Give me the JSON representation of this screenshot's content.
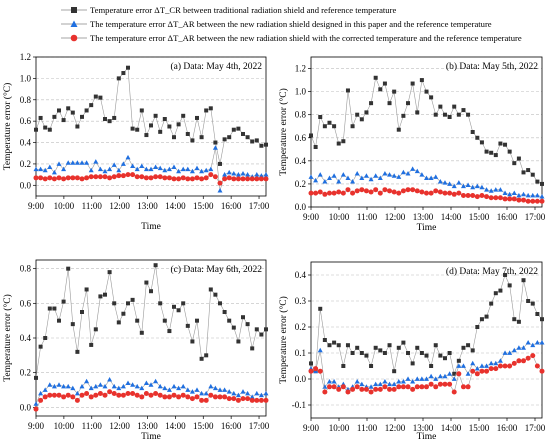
{
  "legend": [
    {
      "text": "Temperature error ΔT_CR between traditional radiation shield and reference temperature",
      "color": "#333333",
      "marker": "square"
    },
    {
      "text": "The temperature error ΔT_AR between the new radiation shield designed in this paper and the reference temperature",
      "color": "#1f6fe0",
      "marker": "triangle"
    },
    {
      "text": "The temperature error ΔT_AR between the new radiation shield with the corrected temperature and the reference temperature",
      "color": "#e8322d",
      "marker": "circle"
    }
  ],
  "chart_data": [
    {
      "type": "line",
      "annotation": "(a) Data: May 4th, 2022",
      "xlabel": "Time",
      "ylabel": "Temperature error (°C)",
      "xticks": [
        "9:00",
        "10:00",
        "11:00",
        "12:00",
        "13:00",
        "14:00",
        "15:00",
        "16:00",
        "17:00"
      ],
      "x_range_hours": [
        9,
        17.25
      ],
      "ylim": [
        -0.1,
        1.2
      ],
      "yticks": [
        "0.0",
        "0.2",
        "0.4",
        "0.6",
        "0.8",
        "1.0",
        "1.2"
      ],
      "grid": "horizontal dashed",
      "series": [
        {
          "name": "ΔT_CR",
          "values": [
            0.52,
            0.63,
            0.54,
            0.52,
            0.64,
            0.7,
            0.61,
            0.72,
            0.68,
            0.55,
            0.64,
            0.7,
            0.75,
            0.83,
            0.82,
            0.62,
            0.6,
            0.63,
            1.0,
            1.05,
            1.1,
            0.53,
            0.52,
            0.7,
            0.47,
            0.56,
            0.65,
            0.5,
            0.62,
            0.55,
            0.45,
            0.57,
            0.65,
            0.48,
            0.42,
            0.63,
            0.45,
            0.7,
            0.72,
            0.4,
            0.2,
            0.43,
            0.45,
            0.52,
            0.53,
            0.48,
            0.45,
            0.41,
            0.42,
            0.37,
            0.38
          ]
        },
        {
          "name": "ΔT_AR (new shield)",
          "values": [
            0.15,
            0.15,
            0.14,
            0.17,
            0.12,
            0.2,
            0.15,
            0.21,
            0.21,
            0.21,
            0.21,
            0.21,
            0.14,
            0.22,
            0.15,
            0.13,
            0.15,
            0.19,
            0.14,
            0.2,
            0.26,
            0.18,
            0.15,
            0.18,
            0.15,
            0.15,
            0.17,
            0.16,
            0.14,
            0.15,
            0.17,
            0.13,
            0.15,
            0.15,
            0.13,
            0.16,
            0.13,
            0.14,
            0.15,
            0.35,
            -0.05,
            0.1,
            0.12,
            0.11,
            0.1,
            0.11,
            0.1,
            0.08,
            0.1,
            0.09,
            0.1
          ]
        },
        {
          "name": "ΔT_AR (corrected)",
          "values": [
            0.07,
            0.07,
            0.06,
            0.07,
            0.06,
            0.07,
            0.06,
            0.07,
            0.07,
            0.07,
            0.06,
            0.07,
            0.08,
            0.08,
            0.08,
            0.08,
            0.07,
            0.08,
            0.09,
            0.09,
            0.1,
            0.1,
            0.08,
            0.08,
            0.07,
            0.07,
            0.08,
            0.08,
            0.07,
            0.07,
            0.06,
            0.06,
            0.07,
            0.06,
            0.06,
            0.07,
            0.06,
            0.07,
            0.1,
            0.08,
            0.02,
            0.06,
            0.07,
            0.06,
            0.06,
            0.06,
            0.06,
            0.06,
            0.06,
            0.06,
            0.06
          ]
        }
      ]
    },
    {
      "type": "line",
      "annotation": "(b) Data: May 5th, 2022",
      "xlabel": "Time",
      "ylabel": "Temperature error (°C)",
      "xticks": [
        "9:00",
        "10:00",
        "11:00",
        "12:00",
        "13:00",
        "14:00",
        "15:00",
        "16:00",
        "17:00"
      ],
      "x_range_hours": [
        9,
        17.25
      ],
      "ylim": [
        0,
        1.3
      ],
      "yticks": [
        "0.0",
        "0.2",
        "0.4",
        "0.6",
        "0.8",
        "1.0",
        "1.2"
      ],
      "grid": "horizontal dashed",
      "series": [
        {
          "name": "ΔT_CR",
          "values": [
            0.62,
            0.52,
            0.78,
            0.7,
            0.73,
            0.7,
            0.55,
            0.57,
            1.01,
            0.7,
            0.8,
            0.76,
            0.82,
            0.9,
            1.12,
            1.02,
            1.07,
            0.9,
            1.0,
            0.67,
            0.79,
            0.9,
            1.07,
            0.82,
            1.1,
            1.0,
            0.95,
            0.8,
            0.87,
            0.8,
            0.78,
            0.87,
            0.8,
            0.84,
            0.8,
            0.65,
            0.6,
            0.56,
            0.48,
            0.47,
            0.45,
            0.55,
            0.54,
            0.48,
            0.38,
            0.42,
            0.3,
            0.32,
            0.28,
            0.22,
            0.2
          ]
        },
        {
          "name": "ΔT_AR (new shield)",
          "values": [
            0.26,
            0.23,
            0.28,
            0.22,
            0.25,
            0.27,
            0.22,
            0.28,
            0.25,
            0.22,
            0.29,
            0.25,
            0.27,
            0.24,
            0.27,
            0.25,
            0.29,
            0.28,
            0.27,
            0.26,
            0.3,
            0.29,
            0.33,
            0.31,
            0.28,
            0.25,
            0.25,
            0.26,
            0.22,
            0.21,
            0.2,
            0.18,
            0.21,
            0.18,
            0.19,
            0.17,
            0.18,
            0.17,
            0.15,
            0.14,
            0.15,
            0.15,
            0.12,
            0.11,
            0.12,
            0.1,
            0.11,
            0.1,
            0.1,
            0.1,
            0.09
          ]
        },
        {
          "name": "ΔT_AR (corrected)",
          "values": [
            0.12,
            0.12,
            0.13,
            0.11,
            0.12,
            0.12,
            0.13,
            0.12,
            0.15,
            0.12,
            0.14,
            0.15,
            0.14,
            0.13,
            0.15,
            0.12,
            0.15,
            0.14,
            0.13,
            0.12,
            0.14,
            0.15,
            0.15,
            0.14,
            0.13,
            0.12,
            0.12,
            0.14,
            0.13,
            0.12,
            0.12,
            0.11,
            0.12,
            0.1,
            0.1,
            0.1,
            0.09,
            0.1,
            0.09,
            0.08,
            0.08,
            0.08,
            0.07,
            0.07,
            0.07,
            0.06,
            0.06,
            0.05,
            0.05,
            0.05,
            0.05
          ]
        }
      ]
    },
    {
      "type": "line",
      "annotation": "(c) Data: May 6th, 2022",
      "xlabel": "Time",
      "ylabel": "Temperature error (°C)",
      "xticks": [
        "9:00",
        "10:00",
        "11:00",
        "12:00",
        "13:00",
        "14:00",
        "15:00",
        "16:00",
        "17:00"
      ],
      "x_range_hours": [
        9,
        17.25
      ],
      "ylim": [
        -0.05,
        0.85
      ],
      "yticks": [
        "0.0",
        "0.2",
        "0.4",
        "0.6",
        "0.8"
      ],
      "grid": "horizontal dashed",
      "series": [
        {
          "name": "ΔT_CR",
          "values": [
            0.17,
            0.35,
            0.4,
            0.57,
            0.57,
            0.5,
            0.61,
            0.8,
            0.48,
            0.32,
            0.55,
            0.68,
            0.36,
            0.45,
            0.64,
            0.65,
            0.78,
            0.6,
            0.49,
            0.54,
            0.6,
            0.62,
            0.5,
            0.43,
            0.72,
            0.67,
            0.82,
            0.6,
            0.5,
            0.44,
            0.58,
            0.56,
            0.6,
            0.47,
            0.38,
            0.5,
            0.28,
            0.3,
            0.68,
            0.65,
            0.6,
            0.55,
            0.5,
            0.46,
            0.38,
            0.52,
            0.48,
            0.34,
            0.45,
            0.42,
            0.45
          ]
        },
        {
          "name": "ΔT_AR (new shield)",
          "values": [
            0.02,
            0.08,
            0.1,
            0.13,
            0.12,
            0.13,
            0.12,
            0.12,
            0.11,
            0.08,
            0.12,
            0.15,
            0.11,
            0.12,
            0.13,
            0.12,
            0.16,
            0.12,
            0.11,
            0.12,
            0.14,
            0.13,
            0.12,
            0.11,
            0.14,
            0.13,
            0.15,
            0.12,
            0.11,
            0.1,
            0.12,
            0.11,
            0.12,
            0.1,
            0.09,
            0.1,
            0.08,
            0.08,
            0.12,
            0.11,
            0.1,
            0.1,
            0.09,
            0.08,
            0.07,
            0.09,
            0.08,
            0.06,
            0.08,
            0.07,
            0.08
          ]
        },
        {
          "name": "ΔT_AR (corrected)",
          "values": [
            -0.01,
            0.04,
            0.06,
            0.07,
            0.07,
            0.07,
            0.06,
            0.07,
            0.06,
            0.04,
            0.07,
            0.08,
            0.06,
            0.07,
            0.08,
            0.07,
            0.09,
            0.08,
            0.07,
            0.07,
            0.08,
            0.08,
            0.07,
            0.06,
            0.08,
            0.07,
            0.08,
            0.07,
            0.06,
            0.06,
            0.07,
            0.06,
            0.07,
            0.06,
            0.05,
            0.06,
            0.04,
            0.04,
            0.07,
            0.06,
            0.06,
            0.06,
            0.05,
            0.05,
            0.04,
            0.05,
            0.05,
            0.04,
            0.04,
            0.04,
            0.04
          ]
        }
      ]
    },
    {
      "type": "line",
      "annotation": "(d) Data: May 7th, 2022",
      "xlabel": "Time",
      "ylabel": "Temperature error (°C)",
      "xticks": [
        "9:00",
        "10:00",
        "11:00",
        "12:00",
        "13:00",
        "14:00",
        "15:00",
        "16:00",
        "17:00"
      ],
      "x_range_hours": [
        9,
        17.25
      ],
      "ylim": [
        -0.15,
        0.45
      ],
      "yticks": [
        "-0.1",
        "0.0",
        "0.1",
        "0.2",
        "0.3",
        "0.4"
      ],
      "grid": "horizontal dashed",
      "series": [
        {
          "name": "ΔT_CR",
          "values": [
            0.06,
            0.03,
            0.27,
            0.15,
            0.13,
            0.14,
            0.13,
            0.05,
            0.13,
            0.1,
            0.12,
            0.1,
            0.09,
            0.05,
            0.12,
            0.11,
            0.1,
            0.13,
            0.03,
            0.12,
            0.14,
            0.1,
            0.06,
            0.12,
            0.1,
            0.09,
            0.05,
            0.13,
            0.09,
            0.08,
            0.1,
            0.02,
            0.07,
            0.12,
            0.13,
            0.11,
            0.2,
            0.23,
            0.24,
            0.29,
            0.33,
            0.34,
            0.4,
            0.36,
            0.23,
            0.22,
            0.38,
            0.3,
            0.29,
            0.25,
            0.23
          ]
        },
        {
          "name": "ΔT_AR (new shield)",
          "values": [
            0.04,
            0.03,
            0.11,
            -0.03,
            -0.01,
            -0.01,
            -0.03,
            -0.02,
            -0.04,
            -0.03,
            -0.01,
            -0.02,
            -0.03,
            -0.03,
            -0.02,
            -0.02,
            -0.01,
            -0.02,
            -0.02,
            -0.01,
            -0.01,
            0.0,
            -0.01,
            0.0,
            0.0,
            0.0,
            0.01,
            0.0,
            0.01,
            0.01,
            0.02,
            0.0,
            0.05,
            0.05,
            0.02,
            0.06,
            0.04,
            0.05,
            0.05,
            0.06,
            0.06,
            0.07,
            0.1,
            0.1,
            0.11,
            0.12,
            0.12,
            0.14,
            0.13,
            0.14,
            0.14
          ]
        },
        {
          "name": "ΔT_AR (corrected)",
          "values": [
            0.03,
            0.04,
            0.03,
            -0.05,
            -0.03,
            -0.03,
            -0.04,
            -0.03,
            -0.05,
            -0.04,
            -0.03,
            -0.04,
            -0.04,
            -0.05,
            -0.04,
            -0.04,
            -0.03,
            -0.04,
            -0.04,
            -0.03,
            -0.03,
            -0.03,
            -0.04,
            -0.03,
            -0.03,
            -0.03,
            -0.02,
            -0.03,
            -0.02,
            -0.02,
            -0.02,
            -0.05,
            0.02,
            -0.03,
            -0.03,
            0.03,
            0.02,
            0.03,
            0.03,
            0.04,
            0.04,
            0.05,
            0.05,
            0.05,
            0.06,
            0.07,
            0.07,
            0.08,
            0.09,
            0.05,
            0.03
          ]
        }
      ]
    }
  ]
}
